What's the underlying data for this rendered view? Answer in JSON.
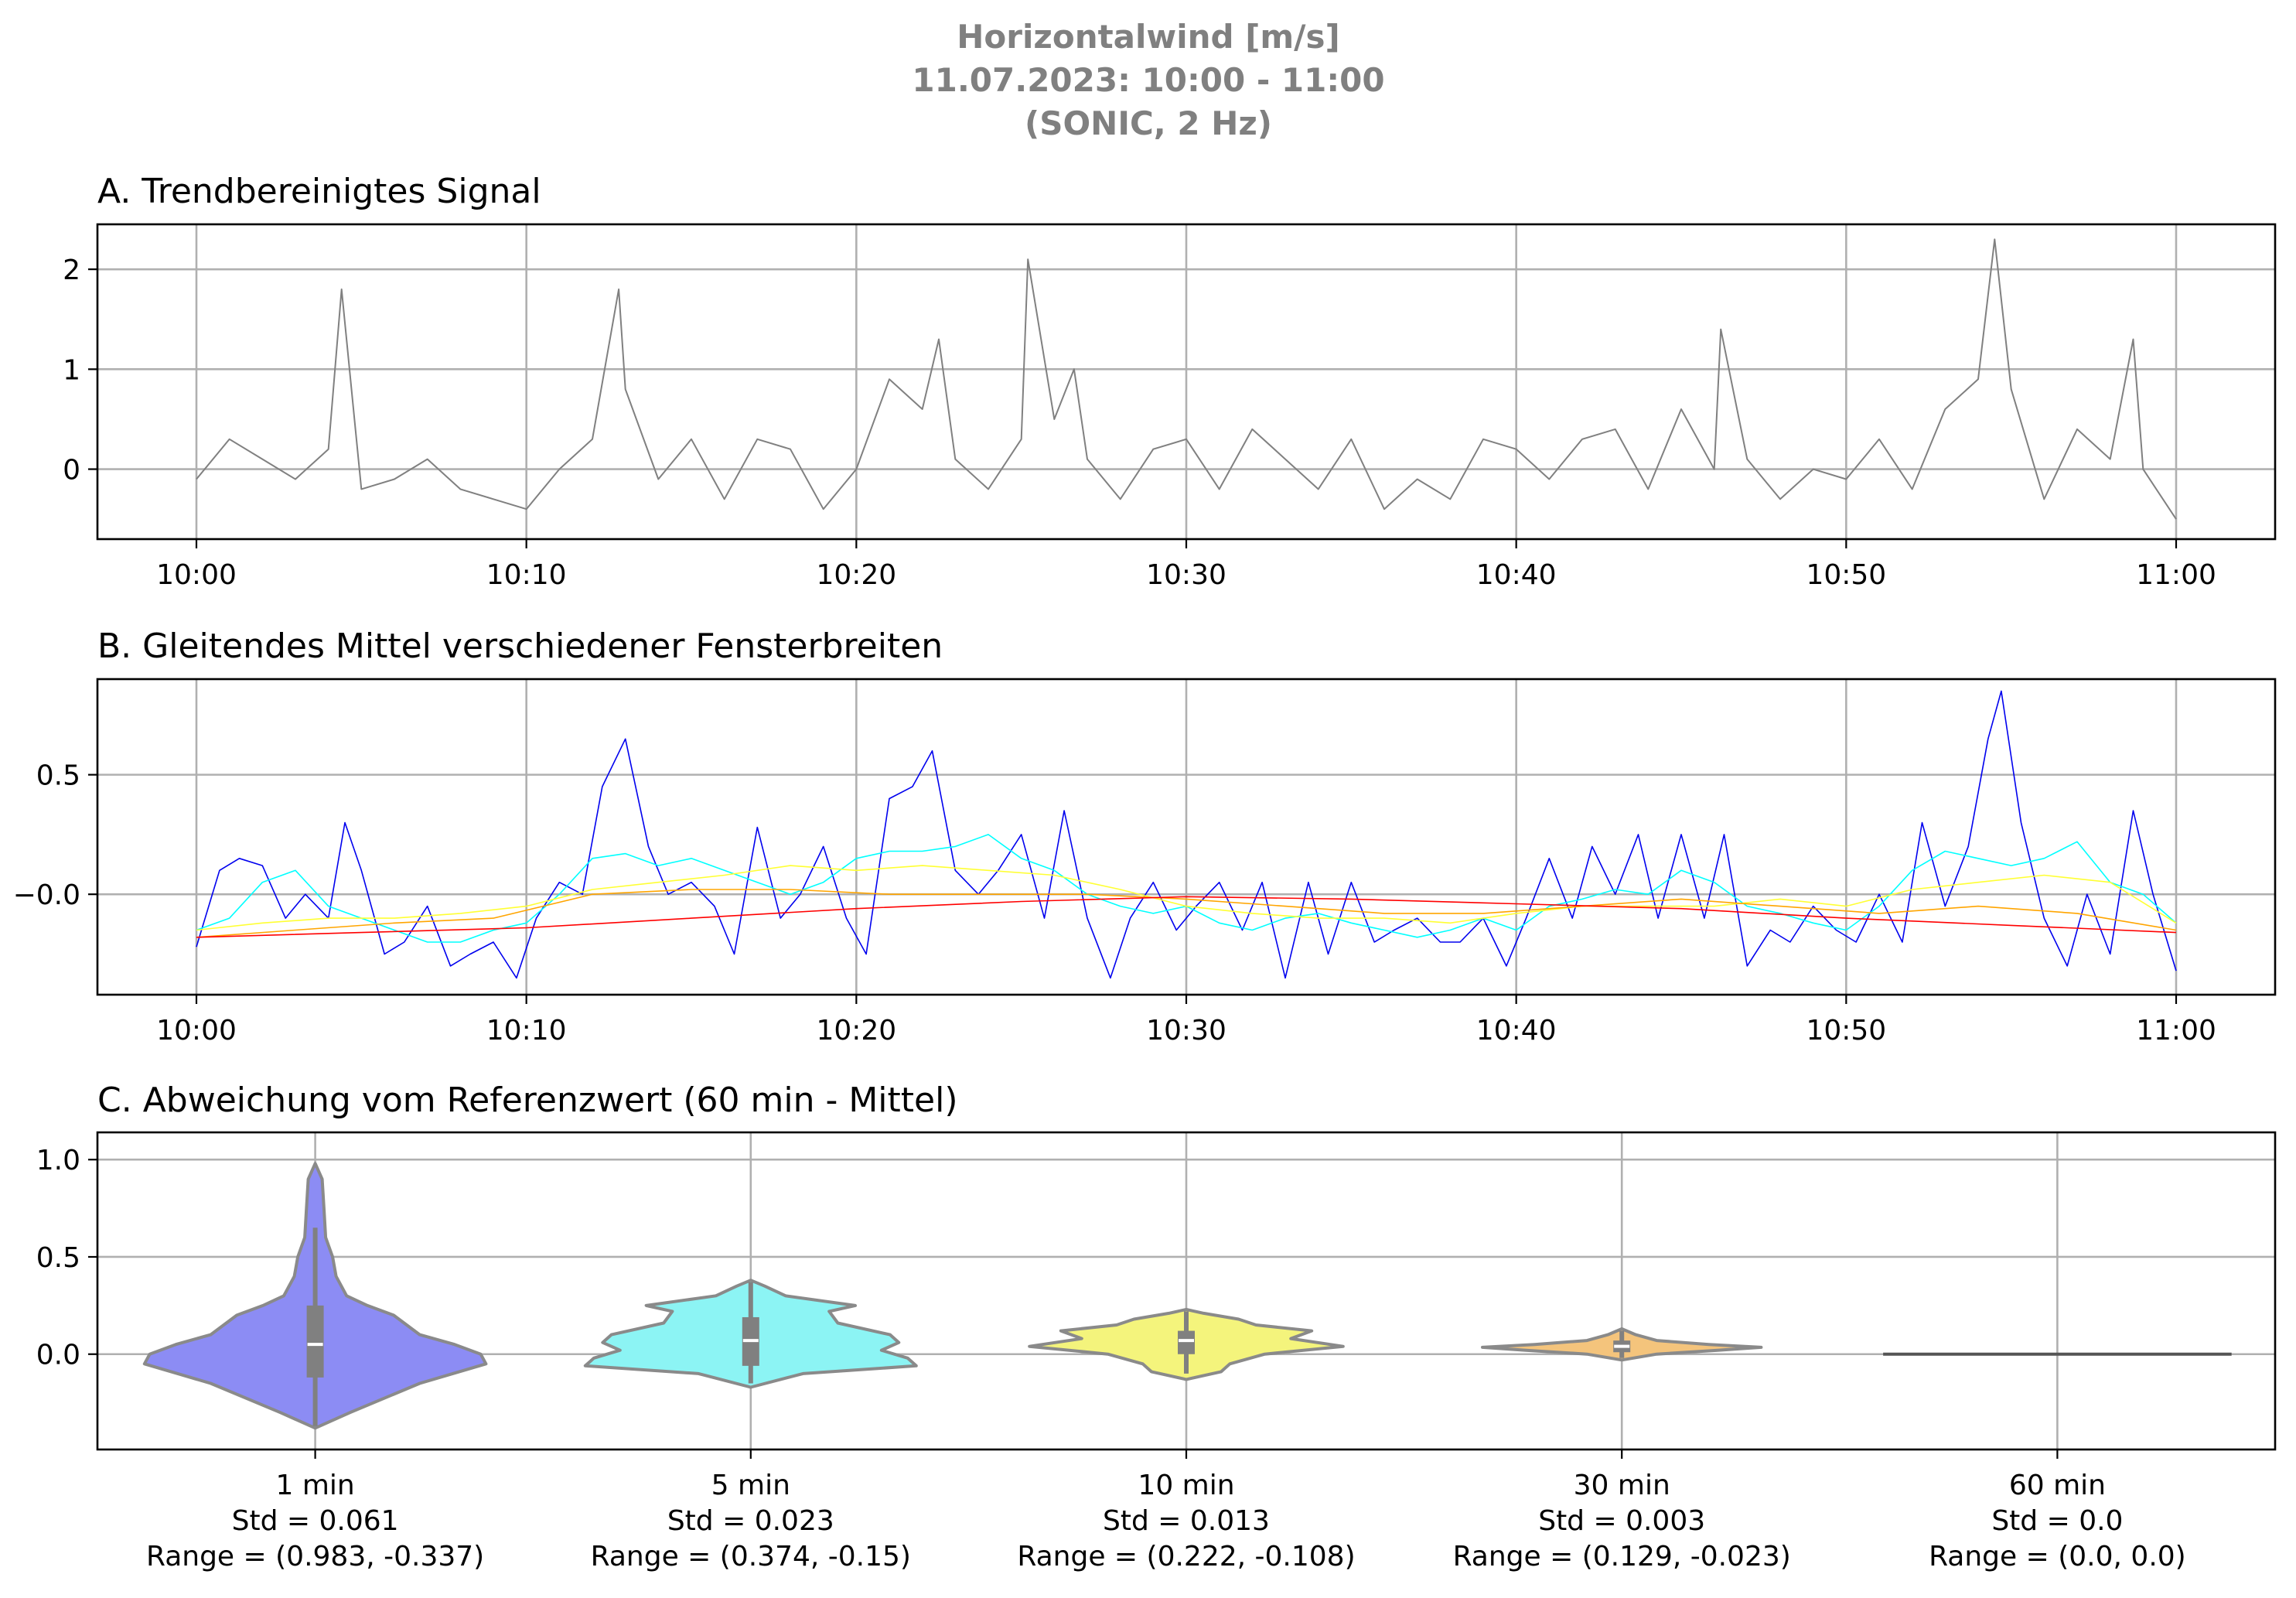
{
  "figure": {
    "suptitle": [
      "Horizontalwind [m/s]",
      "11.07.2023:  10:00 -  11:00",
      "(SONIC, 2 Hz)"
    ]
  },
  "chart_data": [
    {
      "type": "line",
      "title": "A. Trendbereinigtes Signal",
      "x_ticks": [
        "10:00",
        "10:10",
        "10:20",
        "10:30",
        "10:40",
        "10:50",
        "11:00"
      ],
      "y_ticks": [
        "0",
        "1",
        "2"
      ],
      "y_tick_values": [
        0,
        1,
        2
      ],
      "xlim_minutes": [
        -3,
        63
      ],
      "ylim": [
        -0.7,
        2.45
      ],
      "grid": true,
      "color": "#808080",
      "series": [
        {
          "x_minutes": [
            0,
            1,
            2,
            3,
            4,
            4.4,
            5,
            6,
            7,
            8,
            9,
            10,
            11,
            12,
            12.8,
            13,
            14,
            15,
            16,
            17,
            18,
            19,
            20,
            21,
            22,
            22.5,
            23,
            24,
            25,
            25.2,
            26,
            26.6,
            27,
            28,
            29,
            30,
            31,
            32,
            33,
            34,
            35,
            36,
            37,
            38,
            39,
            40,
            41,
            42,
            43,
            44,
            45,
            46,
            46.2,
            47,
            48,
            49,
            50,
            51,
            52,
            53,
            54,
            54.5,
            55,
            56,
            57,
            58,
            58.7,
            59,
            60
          ],
          "values": [
            -0.1,
            0.3,
            0.1,
            -0.1,
            0.2,
            1.8,
            -0.2,
            -0.1,
            0.1,
            -0.2,
            -0.3,
            -0.4,
            0.0,
            0.3,
            1.8,
            0.8,
            -0.1,
            0.3,
            -0.3,
            0.3,
            0.2,
            -0.4,
            0.0,
            0.9,
            0.6,
            1.3,
            0.1,
            -0.2,
            0.3,
            2.1,
            0.5,
            1.0,
            0.1,
            -0.3,
            0.2,
            0.3,
            -0.2,
            0.4,
            0.1,
            -0.2,
            0.3,
            -0.4,
            -0.1,
            -0.3,
            0.3,
            0.2,
            -0.1,
            0.3,
            0.4,
            -0.2,
            0.6,
            0.0,
            1.4,
            0.1,
            -0.3,
            0.0,
            -0.1,
            0.3,
            -0.2,
            0.6,
            0.9,
            2.3,
            0.8,
            -0.3,
            0.4,
            0.1,
            1.3,
            0.0,
            -0.5
          ]
        }
      ]
    },
    {
      "type": "line",
      "title": "B. Gleitendes Mittel verschiedener Fensterbreiten",
      "x_ticks": [
        "10:00",
        "10:10",
        "10:20",
        "10:30",
        "10:40",
        "10:50",
        "11:00"
      ],
      "y_ticks": [
        "−0.0",
        "0.5"
      ],
      "y_tick_values": [
        0,
        0.5
      ],
      "xlim_minutes": [
        -3,
        63
      ],
      "ylim": [
        -0.42,
        0.9
      ],
      "grid": true,
      "series": [
        {
          "color": "#0000ee",
          "x_minutes": [
            0,
            0.7,
            1.3,
            2,
            2.7,
            3.3,
            4,
            4.5,
            5,
            5.7,
            6.3,
            7,
            7.7,
            8.3,
            9,
            9.7,
            10.3,
            11,
            11.7,
            12.3,
            13,
            13.7,
            14.3,
            15,
            15.7,
            16.3,
            17,
            17.7,
            18.3,
            19,
            19.7,
            20.3,
            21,
            21.7,
            22.3,
            23,
            23.7,
            24.3,
            25,
            25.7,
            26.3,
            27,
            27.7,
            28.3,
            29,
            29.7,
            30.3,
            31,
            31.7,
            32.3,
            33,
            33.7,
            34.3,
            35,
            35.7,
            36.3,
            37,
            37.7,
            38.3,
            39,
            39.7,
            40.3,
            41,
            41.7,
            42.3,
            43,
            43.7,
            44.3,
            45,
            45.7,
            46.3,
            47,
            47.7,
            48.3,
            49,
            49.7,
            50.3,
            51,
            51.7,
            52.3,
            53,
            53.7,
            54.3,
            54.7,
            55.3,
            56,
            56.7,
            57.3,
            58,
            58.7,
            59.3,
            60
          ],
          "values": [
            -0.22,
            0.1,
            0.15,
            0.12,
            -0.1,
            0.0,
            -0.1,
            0.3,
            0.1,
            -0.25,
            -0.2,
            -0.05,
            -0.3,
            -0.25,
            -0.2,
            -0.35,
            -0.1,
            0.05,
            0.0,
            0.45,
            0.65,
            0.2,
            0.0,
            0.05,
            -0.05,
            -0.25,
            0.28,
            -0.1,
            0.0,
            0.2,
            -0.1,
            -0.25,
            0.4,
            0.45,
            0.6,
            0.1,
            0.0,
            0.1,
            0.25,
            -0.1,
            0.35,
            -0.1,
            -0.35,
            -0.1,
            0.05,
            -0.15,
            -0.05,
            0.05,
            -0.15,
            0.05,
            -0.35,
            0.05,
            -0.25,
            0.05,
            -0.2,
            -0.15,
            -0.1,
            -0.2,
            -0.2,
            -0.1,
            -0.3,
            -0.1,
            0.15,
            -0.1,
            0.2,
            0.0,
            0.25,
            -0.1,
            0.25,
            -0.1,
            0.25,
            -0.3,
            -0.15,
            -0.2,
            -0.05,
            -0.15,
            -0.2,
            0.0,
            -0.2,
            0.3,
            -0.05,
            0.2,
            0.65,
            0.85,
            0.3,
            -0.1,
            -0.3,
            0.0,
            -0.25,
            0.35,
            0.0,
            -0.32
          ]
        },
        {
          "color": "#00ffff",
          "x_minutes": [
            0,
            1,
            2,
            3,
            4,
            5,
            6,
            7,
            8,
            9,
            10,
            11,
            12,
            13,
            14,
            15,
            16,
            17,
            18,
            19,
            20,
            21,
            22,
            23,
            24,
            25,
            26,
            27,
            28,
            29,
            30,
            31,
            32,
            33,
            34,
            35,
            36,
            37,
            38,
            39,
            40,
            41,
            42,
            43,
            44,
            45,
            46,
            47,
            48,
            49,
            50,
            51,
            52,
            53,
            54,
            55,
            56,
            57,
            58,
            59,
            60
          ],
          "values": [
            -0.15,
            -0.1,
            0.05,
            0.1,
            -0.05,
            -0.1,
            -0.15,
            -0.2,
            -0.2,
            -0.15,
            -0.12,
            0.0,
            0.15,
            0.17,
            0.12,
            0.15,
            0.1,
            0.05,
            0.0,
            0.05,
            0.15,
            0.18,
            0.18,
            0.2,
            0.25,
            0.15,
            0.1,
            0.0,
            -0.05,
            -0.08,
            -0.05,
            -0.12,
            -0.15,
            -0.1,
            -0.08,
            -0.12,
            -0.15,
            -0.18,
            -0.15,
            -0.1,
            -0.15,
            -0.05,
            -0.02,
            0.02,
            0.0,
            0.1,
            0.05,
            -0.05,
            -0.08,
            -0.12,
            -0.15,
            -0.05,
            0.1,
            0.18,
            0.15,
            0.12,
            0.15,
            0.22,
            0.05,
            0.0,
            -0.12
          ]
        },
        {
          "color": "#ffff33",
          "x_minutes": [
            0,
            2,
            4,
            6,
            8,
            10,
            12,
            14,
            16,
            18,
            20,
            22,
            24,
            26,
            28,
            30,
            32,
            34,
            36,
            38,
            40,
            42,
            44,
            46,
            48,
            50,
            52,
            54,
            56,
            58,
            60
          ],
          "values": [
            -0.15,
            -0.12,
            -0.1,
            -0.1,
            -0.08,
            -0.05,
            0.02,
            0.05,
            0.08,
            0.12,
            0.1,
            0.12,
            0.1,
            0.08,
            0.02,
            -0.05,
            -0.08,
            -0.1,
            -0.1,
            -0.12,
            -0.08,
            -0.05,
            -0.05,
            -0.05,
            -0.02,
            -0.05,
            0.02,
            0.05,
            0.08,
            0.05,
            -0.12
          ]
        },
        {
          "color": "#ffa500",
          "x_minutes": [
            0,
            3,
            6,
            9,
            12,
            15,
            18,
            21,
            24,
            27,
            30,
            33,
            36,
            39,
            42,
            45,
            48,
            51,
            54,
            57,
            60
          ],
          "values": [
            -0.18,
            -0.15,
            -0.12,
            -0.1,
            0.0,
            0.02,
            0.02,
            0.0,
            0.0,
            0.0,
            -0.02,
            -0.05,
            -0.08,
            -0.08,
            -0.05,
            -0.02,
            -0.05,
            -0.08,
            -0.05,
            -0.08,
            -0.15
          ]
        },
        {
          "color": "#ff0000",
          "x_minutes": [
            0,
            5,
            10,
            15,
            20,
            25,
            30,
            35,
            40,
            45,
            50,
            55,
            60
          ],
          "values": [
            -0.18,
            -0.16,
            -0.14,
            -0.1,
            -0.06,
            -0.03,
            -0.01,
            -0.02,
            -0.04,
            -0.06,
            -0.1,
            -0.13,
            -0.16
          ]
        }
      ]
    },
    {
      "type": "violin",
      "title": "C. Abweichung vom Referenzwert (60 min - Mittel)",
      "y_ticks": [
        "0.0",
        "0.5",
        "1.0"
      ],
      "y_tick_values": [
        0,
        0.5,
        1.0
      ],
      "xlim": [
        -0.5,
        4.5
      ],
      "ylim": [
        -0.49,
        1.14
      ],
      "grid": true,
      "categories": [
        "1 min",
        "5 min",
        "10 min",
        "30 min",
        "60 min"
      ],
      "std_labels": [
        "Std = 0.061",
        "Std = 0.023",
        "Std = 0.013",
        "Std = 0.003",
        "Std = 0.0"
      ],
      "range_labels": [
        "Range = (0.983, -0.337)",
        "Range = (0.374, -0.15)",
        "Range = (0.222, -0.108)",
        "Range = (0.129, -0.023)",
        "Range = (0.0, 0.0)"
      ],
      "colors": [
        "#8c8cf4",
        "#8cf4f4",
        "#f4f47c",
        "#f4c47c",
        "#555555"
      ],
      "violins": [
        {
          "y": [
            -0.38,
            -0.3,
            -0.15,
            -0.05,
            0.0,
            0.05,
            0.1,
            0.2,
            0.25,
            0.3,
            0.4,
            0.5,
            0.6,
            0.75,
            0.9,
            0.98
          ],
          "w": [
            0.0,
            0.2,
            0.6,
            0.98,
            0.95,
            0.8,
            0.6,
            0.45,
            0.3,
            0.18,
            0.12,
            0.1,
            0.06,
            0.05,
            0.04,
            0.0
          ],
          "q1": -0.12,
          "median": 0.05,
          "q3": 0.25,
          "wlo": -0.37,
          "whi": 0.65
        },
        {
          "y": [
            -0.17,
            -0.1,
            -0.06,
            -0.02,
            0.02,
            0.06,
            0.1,
            0.16,
            0.22,
            0.25,
            0.3,
            0.35,
            0.38
          ],
          "w": [
            0.0,
            0.3,
            0.95,
            0.9,
            0.75,
            0.85,
            0.8,
            0.5,
            0.45,
            0.6,
            0.2,
            0.08,
            0.0
          ],
          "q1": -0.06,
          "median": 0.07,
          "q3": 0.19,
          "wlo": -0.15,
          "whi": 0.37
        },
        {
          "y": [
            -0.13,
            -0.09,
            -0.05,
            0.0,
            0.04,
            0.08,
            0.12,
            0.15,
            0.18,
            0.21,
            0.23
          ],
          "w": [
            0.0,
            0.2,
            0.25,
            0.45,
            0.9,
            0.6,
            0.72,
            0.4,
            0.3,
            0.1,
            0.0
          ],
          "q1": 0.0,
          "median": 0.07,
          "q3": 0.12,
          "wlo": -0.1,
          "whi": 0.22
        },
        {
          "y": [
            -0.03,
            0.0,
            0.02,
            0.035,
            0.05,
            0.07,
            0.1,
            0.13
          ],
          "w": [
            0.0,
            0.2,
            0.55,
            0.8,
            0.5,
            0.2,
            0.08,
            0.0
          ],
          "q1": 0.01,
          "median": 0.04,
          "q3": 0.07,
          "wlo": -0.02,
          "whi": 0.12
        },
        {
          "flat": true,
          "value": 0.0
        }
      ]
    }
  ]
}
